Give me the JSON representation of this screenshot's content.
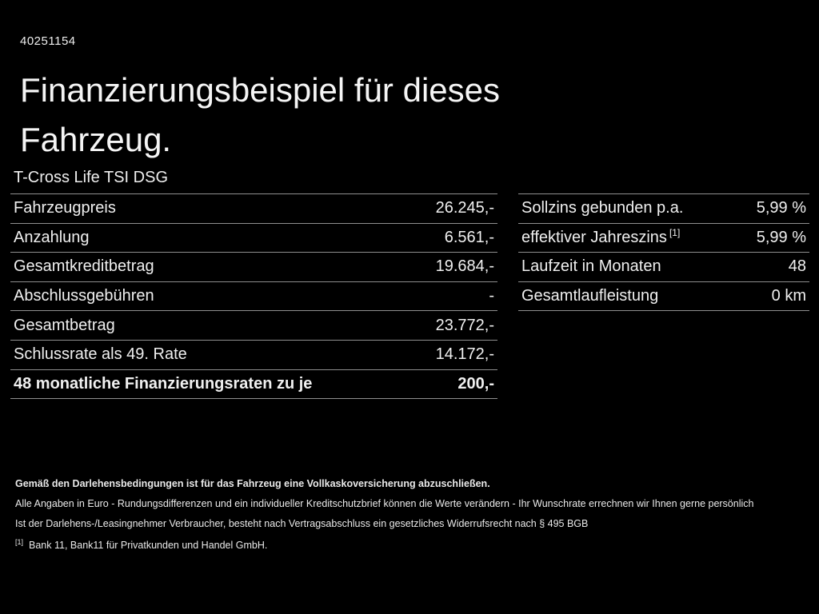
{
  "document": {
    "id": "40251154",
    "title": "Finanzierungsbeispiel für dieses Fahrzeug.",
    "vehicle": "T-Cross Life TSI DSG"
  },
  "tables": {
    "left": {
      "rows": [
        {
          "label": "Fahrzeugpreis",
          "value": "26.245,-"
        },
        {
          "label": "Anzahlung",
          "value": "6.561,-"
        },
        {
          "label": "Gesamtkreditbetrag",
          "value": "19.684,-"
        },
        {
          "label": "Abschlussgebühren",
          "value": "-"
        },
        {
          "label": "Gesamtbetrag",
          "value": "23.772,-"
        },
        {
          "label": "Schlussrate als 49. Rate",
          "value": "14.172,-"
        },
        {
          "label": "48 monatliche Finanzierungsraten zu je",
          "value": "200,-"
        }
      ]
    },
    "right": {
      "rows": [
        {
          "label": "Sollzins gebunden p.a.",
          "value": "5,99 %"
        },
        {
          "label": "effektiver Jahreszins",
          "sup": "[1]",
          "value": "5,99 %"
        },
        {
          "label": "Laufzeit in Monaten",
          "value": "48"
        },
        {
          "label": "Gesamtlaufleistung",
          "value": "0 km"
        }
      ]
    }
  },
  "footer": {
    "line1": "Gemäß den Darlehensbedingungen ist für das Fahrzeug eine Vollkaskoversicherung abzuschließen.",
    "line2": "Alle Angaben in Euro - Rundungsdifferenzen und ein individueller Kreditschutzbrief können die Werte verändern - Ihr Wunschrate errechnen wir Ihnen gerne persönlich",
    "line3": "Ist der Darlehens-/Leasingnehmer Verbraucher, besteht nach Vertragsabschluss ein gesetzliches Widerrufsrecht nach § 495 BGB",
    "footnote_marker": "[1]",
    "footnote": "Bank 11, Bank11 für Privatkunden und Handel GmbH."
  },
  "colors": {
    "background": "#000000",
    "text": "#f2f2f2",
    "divider": "#8f8f8f"
  }
}
